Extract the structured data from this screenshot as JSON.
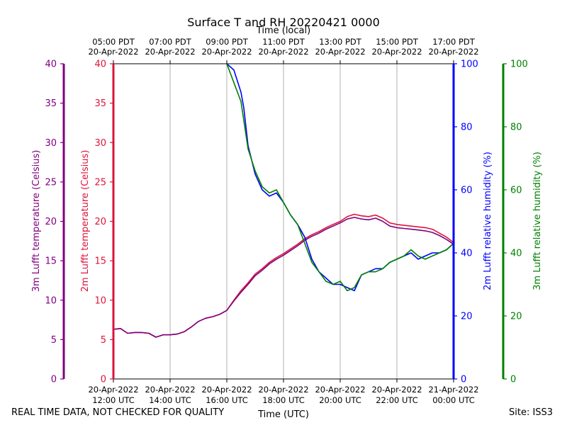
{
  "chart_data": {
    "type": "line",
    "title": "Surface T and RH 20220421 0000",
    "top_axis_label": "Time (local)",
    "xlabel": "Time (UTC)",
    "xlim": [
      0,
      12
    ],
    "x_units": "hours since 20-Apr-2022 12:00 UTC",
    "top_ticks": [
      {
        "x": 0,
        "line1": "05:00 PDT",
        "line2": "20-Apr-2022"
      },
      {
        "x": 2,
        "line1": "07:00 PDT",
        "line2": "20-Apr-2022"
      },
      {
        "x": 4,
        "line1": "09:00 PDT",
        "line2": "20-Apr-2022"
      },
      {
        "x": 6,
        "line1": "11:00 PDT",
        "line2": "20-Apr-2022"
      },
      {
        "x": 8,
        "line1": "13:00 PDT",
        "line2": "20-Apr-2022"
      },
      {
        "x": 10,
        "line1": "15:00 PDT",
        "line2": "20-Apr-2022"
      },
      {
        "x": 12,
        "line1": "17:00 PDT",
        "line2": "20-Apr-2022"
      }
    ],
    "bottom_ticks": [
      {
        "x": 0,
        "line1": "20-Apr-2022",
        "line2": "12:00 UTC"
      },
      {
        "x": 2,
        "line1": "20-Apr-2022",
        "line2": "14:00 UTC"
      },
      {
        "x": 4,
        "line1": "20-Apr-2022",
        "line2": "16:00 UTC"
      },
      {
        "x": 6,
        "line1": "20-Apr-2022",
        "line2": "18:00 UTC"
      },
      {
        "x": 8,
        "line1": "20-Apr-2022",
        "line2": "20:00 UTC"
      },
      {
        "x": 10,
        "line1": "20-Apr-2022",
        "line2": "22:00 UTC"
      },
      {
        "x": 12,
        "line1": "21-Apr-2022",
        "line2": "00:00 UTC"
      }
    ],
    "axes": {
      "temp3m": {
        "label": "3m Lufft temperature (Celsius)",
        "color": "#800080",
        "ylim": [
          0,
          40
        ],
        "ticks": [
          0,
          5,
          10,
          15,
          20,
          25,
          30,
          35,
          40
        ]
      },
      "temp2m": {
        "label": "2m Lufft temperature (Celsius)",
        "color": "#dc143c",
        "ylim": [
          0,
          40
        ],
        "ticks": [
          0,
          5,
          10,
          15,
          20,
          25,
          30,
          35,
          40
        ]
      },
      "rh2m": {
        "label": "2m Lufft relative humidity (%)",
        "color": "#0000ff",
        "ylim": [
          0,
          100
        ],
        "ticks": [
          0,
          20,
          40,
          60,
          80,
          100
        ]
      },
      "rh3m": {
        "label": "3m Lufft relative humidity (%)",
        "color": "#008000",
        "ylim": [
          0,
          100
        ],
        "ticks": [
          0,
          20,
          40,
          60,
          80,
          100
        ]
      }
    },
    "series": [
      {
        "name": "2m Lufft temperature",
        "axis": "temp2m",
        "color": "#dc143c",
        "x": [
          0,
          0.25,
          0.5,
          0.75,
          1.0,
          1.25,
          1.5,
          1.75,
          2.0,
          2.25,
          2.5,
          2.75,
          3.0,
          3.25,
          3.5,
          3.75,
          4.0,
          4.25,
          4.5,
          4.75,
          5.0,
          5.25,
          5.5,
          5.75,
          6.0,
          6.25,
          6.5,
          6.75,
          7.0,
          7.25,
          7.5,
          7.75,
          8.0,
          8.25,
          8.5,
          8.75,
          9.0,
          9.25,
          9.5,
          9.75,
          10.0,
          10.25,
          10.5,
          10.75,
          11.0,
          11.25,
          11.5,
          11.75,
          12.0
        ],
        "y": [
          6.3,
          6.4,
          5.8,
          5.9,
          5.9,
          5.8,
          5.3,
          5.6,
          5.6,
          5.7,
          6.0,
          6.6,
          7.3,
          7.7,
          7.9,
          8.2,
          8.7,
          10.0,
          11.2,
          12.2,
          13.3,
          14.0,
          14.8,
          15.4,
          15.9,
          16.5,
          17.1,
          17.8,
          18.3,
          18.7,
          19.2,
          19.6,
          20.0,
          20.6,
          20.9,
          20.7,
          20.6,
          20.8,
          20.4,
          19.8,
          19.6,
          19.5,
          19.4,
          19.3,
          19.2,
          19.0,
          18.5,
          18.0,
          17.3
        ]
      },
      {
        "name": "3m Lufft temperature",
        "axis": "temp3m",
        "color": "#800080",
        "x": [
          0,
          0.25,
          0.5,
          0.75,
          1.0,
          1.25,
          1.5,
          1.75,
          2.0,
          2.25,
          2.5,
          2.75,
          3.0,
          3.25,
          3.5,
          3.75,
          4.0,
          4.25,
          4.5,
          4.75,
          5.0,
          5.25,
          5.5,
          5.75,
          6.0,
          6.25,
          6.5,
          6.75,
          7.0,
          7.25,
          7.5,
          7.75,
          8.0,
          8.25,
          8.5,
          8.75,
          9.0,
          9.25,
          9.5,
          9.75,
          10.0,
          10.25,
          10.5,
          10.75,
          11.0,
          11.25,
          11.5,
          11.75,
          12.0
        ],
        "y": [
          6.3,
          6.4,
          5.8,
          5.9,
          5.9,
          5.8,
          5.3,
          5.6,
          5.6,
          5.7,
          6.0,
          6.6,
          7.3,
          7.7,
          7.9,
          8.2,
          8.7,
          9.9,
          11.0,
          12.0,
          13.1,
          13.8,
          14.6,
          15.2,
          15.7,
          16.3,
          16.9,
          17.6,
          18.1,
          18.5,
          19.0,
          19.4,
          19.8,
          20.3,
          20.5,
          20.3,
          20.2,
          20.4,
          20.0,
          19.4,
          19.2,
          19.1,
          19.0,
          18.9,
          18.8,
          18.6,
          18.2,
          17.7,
          17.1
        ]
      },
      {
        "name": "2m Lufft relative humidity",
        "axis": "rh2m",
        "color": "#0000ff",
        "x": [
          4.0,
          4.25,
          4.5,
          4.6,
          4.75,
          5.0,
          5.25,
          5.5,
          5.75,
          6.0,
          6.25,
          6.5,
          6.75,
          7.0,
          7.25,
          7.5,
          7.75,
          8.0,
          8.25,
          8.5,
          8.75,
          9.0,
          9.25,
          9.5,
          9.75,
          10.0,
          10.25,
          10.5,
          10.75,
          11.0,
          11.25,
          11.5,
          11.75,
          12.0
        ],
        "y": [
          100,
          98,
          91,
          86,
          74,
          65,
          60,
          58,
          59,
          56,
          52,
          49,
          45,
          38,
          34,
          32,
          30,
          30,
          29,
          28,
          33,
          34,
          35,
          35,
          37,
          38,
          39,
          40,
          38,
          39,
          40,
          40,
          41,
          43
        ]
      },
      {
        "name": "3m Lufft relative humidity",
        "axis": "rh3m",
        "color": "#008000",
        "x": [
          4.0,
          4.25,
          4.5,
          4.6,
          4.75,
          5.0,
          5.25,
          5.5,
          5.75,
          6.0,
          6.25,
          6.5,
          6.75,
          7.0,
          7.25,
          7.5,
          7.75,
          8.0,
          8.25,
          8.5,
          8.75,
          9.0,
          9.25,
          9.5,
          9.75,
          10.0,
          10.25,
          10.5,
          10.75,
          11.0,
          11.25,
          11.5,
          11.75,
          12.0
        ],
        "y": [
          100,
          94,
          88,
          82,
          73,
          66,
          61,
          59,
          60,
          56,
          52,
          49,
          43,
          37,
          34,
          31,
          30,
          31,
          28,
          29,
          33,
          34,
          34,
          35,
          37,
          38,
          39,
          41,
          39,
          38,
          39,
          40,
          41,
          43
        ]
      }
    ]
  },
  "footer": {
    "left_note": "REAL TIME DATA, NOT CHECKED FOR QUALITY",
    "site": "Site: ISS3"
  }
}
